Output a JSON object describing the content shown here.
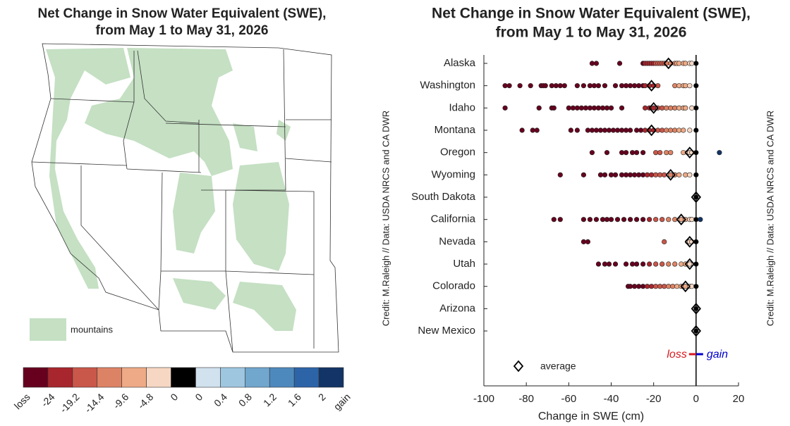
{
  "map": {
    "title_line1": "Net Change in Snow Water Equivalent (SWE),",
    "title_line2": "from May 1 to May 31, 2026",
    "legend_label": "mountains"
  },
  "colorbar": {
    "colors": [
      "#67001f",
      "#a8262d",
      "#c9574a",
      "#dd8365",
      "#eeaa86",
      "#f6d7c3",
      "#000000",
      "#d1e1ee",
      "#9ec6df",
      "#71a6cd",
      "#4e89bd",
      "#2d64a8",
      "#123466"
    ],
    "ticks": [
      "loss",
      -24,
      -19.2,
      -14.4,
      -9.6,
      -4.8,
      0,
      0,
      0.4,
      0.8,
      1.2,
      1.6,
      2,
      "gain"
    ]
  },
  "credit": "Credit: M.Raleigh // Data: USDA NRCS and CA DWR",
  "chart_data": {
    "type": "strip",
    "title_line1": "Net Change in Snow Water Equivalent (SWE),",
    "title_line2": "from May 1 to May 31, 2026",
    "xlabel": "Change in SWE (cm)",
    "xlim": [
      -100,
      20
    ],
    "xticks": [
      -100,
      -80,
      -60,
      -40,
      -20,
      0,
      20
    ],
    "categories": [
      "Alaska",
      "Washington",
      "Idaho",
      "Montana",
      "Oregon",
      "Wyoming",
      "South Dakota",
      "California",
      "Nevada",
      "Utah",
      "Colorado",
      "Arizona",
      "New Mexico"
    ],
    "stations": [
      [
        -49,
        -47,
        -36,
        -25,
        -24,
        -23,
        -22,
        -21,
        -20,
        -19,
        -18,
        -17,
        -16,
        -15,
        -14,
        -12,
        -10,
        -9,
        -8,
        -6,
        -5,
        -3,
        -2,
        0
      ],
      [
        -90,
        -88,
        -83,
        -78,
        -73,
        -72,
        -71,
        -68,
        -66,
        -64,
        -62,
        -56,
        -53,
        -50,
        -48,
        -46,
        -43,
        -38,
        -35,
        -33,
        -31,
        -29,
        -27,
        -25,
        -24,
        -22,
        -20,
        -18,
        -10,
        -8,
        -6,
        -5,
        -3,
        0
      ],
      [
        -90,
        -74,
        -68,
        -67,
        -60,
        -58,
        -56,
        -54,
        -52,
        -50,
        -48,
        -46,
        -44,
        -42,
        -40,
        -35,
        -24,
        -22,
        -20,
        -18,
        -16,
        -14,
        -12,
        -10,
        -8,
        -6,
        -5,
        -2,
        0
      ],
      [
        -82,
        -77,
        -75,
        -59,
        -56,
        -51,
        -49,
        -47,
        -45,
        -43,
        -41,
        -39,
        -37,
        -35,
        -33,
        -31,
        -28,
        -26,
        -24,
        -22,
        -20,
        -18,
        -16,
        -14,
        -12,
        -10,
        -8,
        -6,
        -3,
        0
      ],
      [
        -49,
        -42,
        -35,
        -33,
        -30,
        -28,
        -25,
        -19,
        -17,
        -14,
        -12,
        -6,
        -4,
        -3,
        -2,
        0,
        11
      ],
      [
        -64,
        -53,
        -45,
        -43,
        -40,
        -38,
        -35,
        -33,
        -31,
        -29,
        -27,
        -25,
        -23,
        -21,
        -19,
        -17,
        -15,
        -12,
        -10,
        -8,
        -5,
        -3,
        0
      ],
      [
        0
      ],
      [
        -67,
        -64,
        -53,
        -50,
        -47,
        -44,
        -42,
        -40,
        -37,
        -34,
        -31,
        -28,
        -25,
        -22,
        -19,
        -16,
        -13,
        -10,
        -7,
        -5,
        -3,
        -2,
        0,
        2
      ],
      [
        -53,
        -51,
        -15,
        -4,
        -3,
        -2,
        0
      ],
      [
        -46,
        -43,
        -41,
        -38,
        -33,
        -30,
        -28,
        -25,
        -22,
        -19,
        -16,
        -13,
        -10,
        -7,
        -5,
        -3,
        0
      ],
      [
        -32,
        -31,
        -29,
        -27,
        -25,
        -23,
        -21,
        -19,
        -17,
        -15,
        -13,
        -11,
        -9,
        -7,
        -6,
        -5,
        -3,
        -2,
        0
      ],
      [
        0
      ],
      [
        0
      ]
    ],
    "averages": [
      -13,
      -21,
      -20,
      -21,
      -3,
      -12,
      0,
      -7,
      -3,
      -3,
      -5,
      0,
      0
    ],
    "average_label": "average",
    "loss_label": "loss",
    "gain_label": "gain",
    "loss_color": "#d7191c",
    "gain_color": "#0000cc"
  }
}
